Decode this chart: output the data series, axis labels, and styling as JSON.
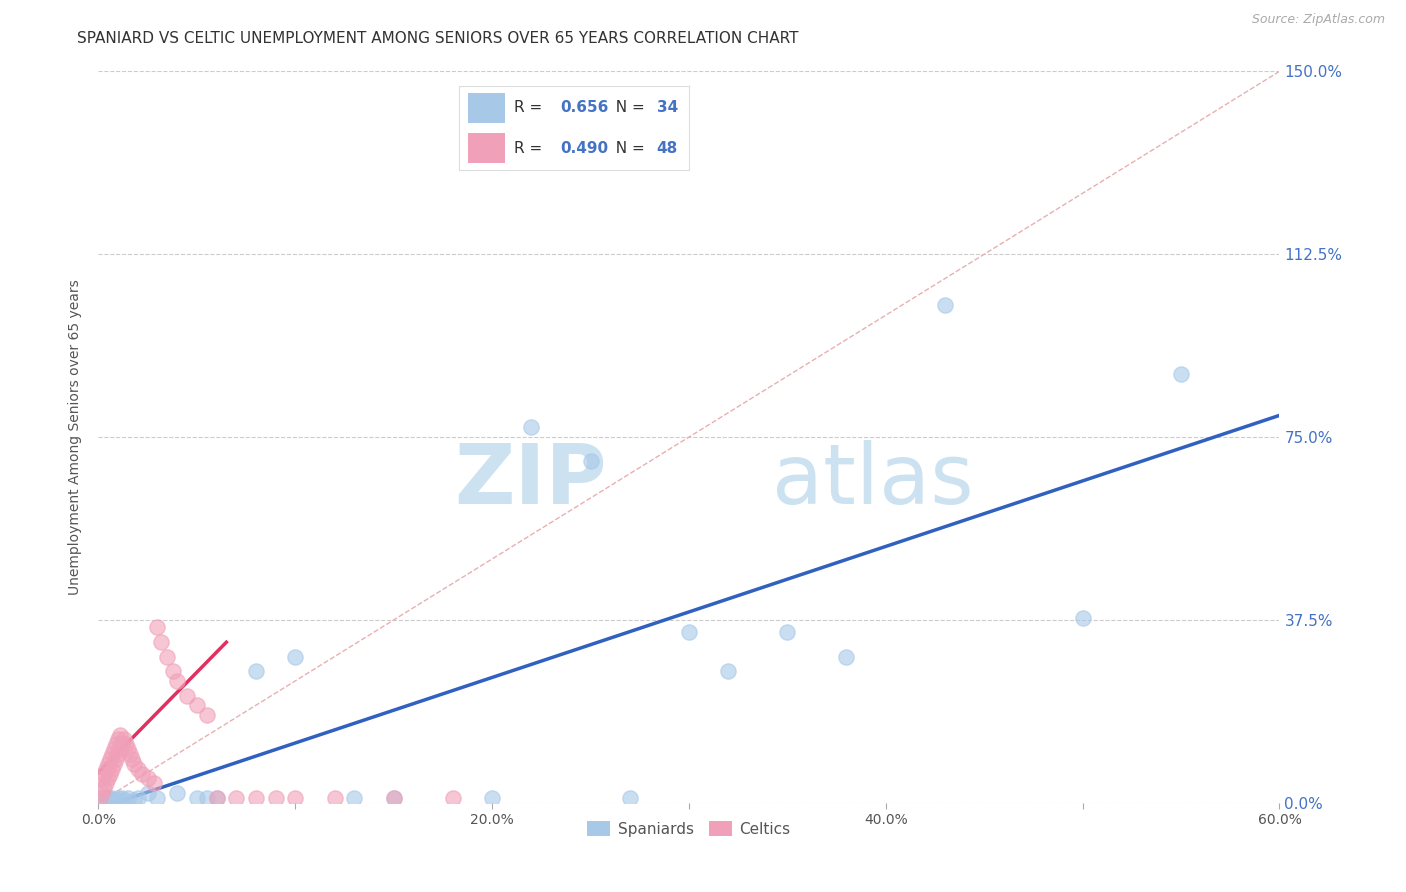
{
  "title": "SPANIARD VS CELTIC UNEMPLOYMENT AMONG SENIORS OVER 65 YEARS CORRELATION CHART",
  "source": "Source: ZipAtlas.com",
  "ylabel": "Unemployment Among Seniors over 65 years",
  "xlim": [
    0.0,
    0.6
  ],
  "ylim": [
    0.0,
    1.5
  ],
  "xtick_vals": [
    0.0,
    0.1,
    0.2,
    0.3,
    0.4,
    0.5,
    0.6
  ],
  "xticklabels": [
    "0.0%",
    "",
    "20.0%",
    "",
    "40.0%",
    "",
    "60.0%"
  ],
  "yticks": [
    0.0,
    0.375,
    0.75,
    1.125,
    1.5
  ],
  "yticklabels": [
    "0.0%",
    "37.5%",
    "75.0%",
    "112.5%",
    "150.0%"
  ],
  "grid_color": "#cccccc",
  "background_color": "#ffffff",
  "spaniards_color": "#a8c8e8",
  "celtics_color": "#f0a0b8",
  "spaniards_R": 0.656,
  "spaniards_N": 34,
  "celtics_R": 0.49,
  "celtics_N": 48,
  "legend_label_1": "Spaniards",
  "legend_label_2": "Celtics",
  "watermark_zip": "ZIP",
  "watermark_atlas": "atlas",
  "blue_line_color": "#3060c0",
  "pink_line_color": "#e03060",
  "ref_line_color": "#e8b0b0",
  "title_fontsize": 11,
  "axis_label_fontsize": 10,
  "tick_fontsize": 10,
  "source_fontsize": 9,
  "watermark_fontsize": 60,
  "ytick_color": "#4472c4",
  "spaniards_x": [
    0.003,
    0.004,
    0.005,
    0.006,
    0.007,
    0.008,
    0.009,
    0.01,
    0.012,
    0.013,
    0.015,
    0.018,
    0.02,
    0.025,
    0.03,
    0.04,
    0.05,
    0.055,
    0.06,
    0.08,
    0.1,
    0.13,
    0.15,
    0.2,
    0.22,
    0.25,
    0.27,
    0.3,
    0.32,
    0.35,
    0.38,
    0.43,
    0.5,
    0.55
  ],
  "spaniards_y": [
    0.01,
    0.005,
    0.01,
    0.005,
    0.01,
    0.005,
    0.005,
    0.01,
    0.01,
    0.005,
    0.01,
    0.005,
    0.01,
    0.02,
    0.01,
    0.02,
    0.01,
    0.01,
    0.01,
    0.27,
    0.3,
    0.01,
    0.01,
    0.01,
    0.77,
    0.7,
    0.01,
    0.35,
    0.27,
    0.35,
    0.3,
    1.02,
    0.38,
    0.88
  ],
  "celtics_x": [
    0.001,
    0.002,
    0.002,
    0.003,
    0.003,
    0.004,
    0.004,
    0.005,
    0.005,
    0.006,
    0.006,
    0.007,
    0.007,
    0.008,
    0.008,
    0.009,
    0.009,
    0.01,
    0.01,
    0.011,
    0.011,
    0.012,
    0.013,
    0.014,
    0.015,
    0.016,
    0.017,
    0.018,
    0.02,
    0.022,
    0.025,
    0.028,
    0.03,
    0.032,
    0.035,
    0.038,
    0.04,
    0.045,
    0.05,
    0.055,
    0.06,
    0.07,
    0.08,
    0.09,
    0.1,
    0.12,
    0.15,
    0.18
  ],
  "celtics_y": [
    0.01,
    0.02,
    0.05,
    0.03,
    0.06,
    0.04,
    0.07,
    0.05,
    0.08,
    0.06,
    0.09,
    0.07,
    0.1,
    0.08,
    0.11,
    0.09,
    0.12,
    0.1,
    0.13,
    0.11,
    0.14,
    0.12,
    0.13,
    0.12,
    0.11,
    0.1,
    0.09,
    0.08,
    0.07,
    0.06,
    0.05,
    0.04,
    0.36,
    0.33,
    0.3,
    0.27,
    0.25,
    0.22,
    0.2,
    0.18,
    0.01,
    0.01,
    0.01,
    0.01,
    0.01,
    0.01,
    0.01,
    0.01
  ]
}
